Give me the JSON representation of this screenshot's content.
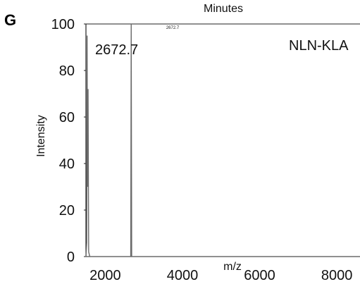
{
  "panel_letter": "G",
  "colors": {
    "axis": "#222222",
    "peak": "#6b6b6b",
    "background": "#ffffff"
  },
  "chart_data": {
    "type": "line",
    "top_label": "Minutes",
    "xlabel": "m/z",
    "ylabel": "Intensity",
    "xlim": [
      1500,
      8600
    ],
    "ylim": [
      0,
      100
    ],
    "x_ticks": [
      2000,
      4000,
      6000,
      8000
    ],
    "y_ticks": [
      0,
      20,
      40,
      60,
      80,
      100
    ],
    "series": [
      {
        "name": "NLN-KLA",
        "points": [
          [
            1500,
            0
          ],
          [
            1520,
            6
          ],
          [
            1530,
            95
          ],
          [
            1540,
            30
          ],
          [
            1555,
            72
          ],
          [
            1570,
            2
          ],
          [
            1600,
            0
          ],
          [
            2660,
            0
          ],
          [
            2672.7,
            100
          ],
          [
            2685,
            0
          ],
          [
            8600,
            0
          ]
        ]
      }
    ],
    "annotations": {
      "peak_mz_large": "2672.7",
      "peak_mz_small": "2672.7",
      "sample_label": "NLN-KLA"
    },
    "grid": false,
    "legend": "none"
  }
}
